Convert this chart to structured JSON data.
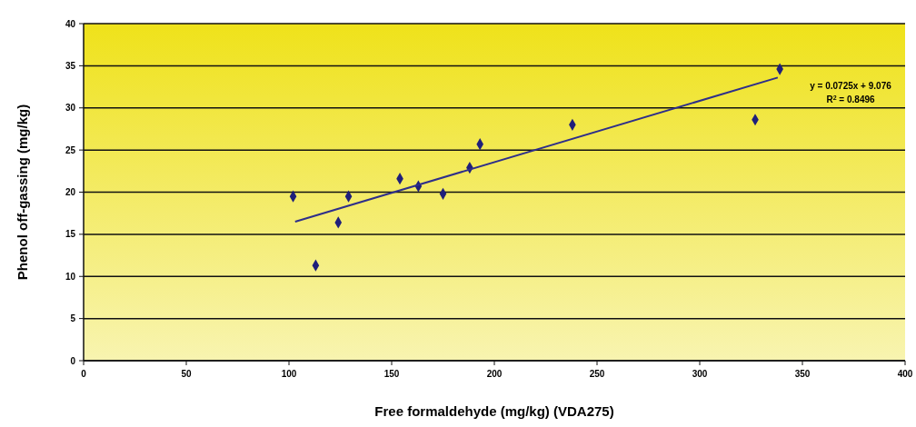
{
  "chart_data": {
    "type": "scatter",
    "xlabel": "Free formaldehyde (mg/kg) (VDA275)",
    "ylabel": "Phenol off-gassing (mg/kg)",
    "xlim": [
      0,
      400
    ],
    "xticks": [
      0,
      50,
      100,
      150,
      200,
      250,
      300,
      350,
      400
    ],
    "ylim": [
      0,
      40
    ],
    "yticks": [
      0,
      5,
      10,
      15,
      20,
      25,
      30,
      35,
      40
    ],
    "grid": "y",
    "marker": "diamond",
    "series": [
      {
        "color": "#1f1f7a",
        "x": [
          102,
          113,
          124,
          129,
          154,
          163,
          175,
          188,
          193,
          238,
          327,
          339
        ],
        "values": [
          19.5,
          11.3,
          16.4,
          19.5,
          21.6,
          20.7,
          19.8,
          22.9,
          25.7,
          28.0,
          28.6,
          34.6
        ]
      },
      {
        "type": "line",
        "color": "#2e2e8a",
        "x": [
          103,
          338
        ],
        "values": [
          16.5,
          33.6
        ],
        "marker": "none"
      }
    ],
    "annotations": [
      "y = 0.0725x + 9.076",
      "R$^{2}$ = 0.8496"
    ]
  }
}
